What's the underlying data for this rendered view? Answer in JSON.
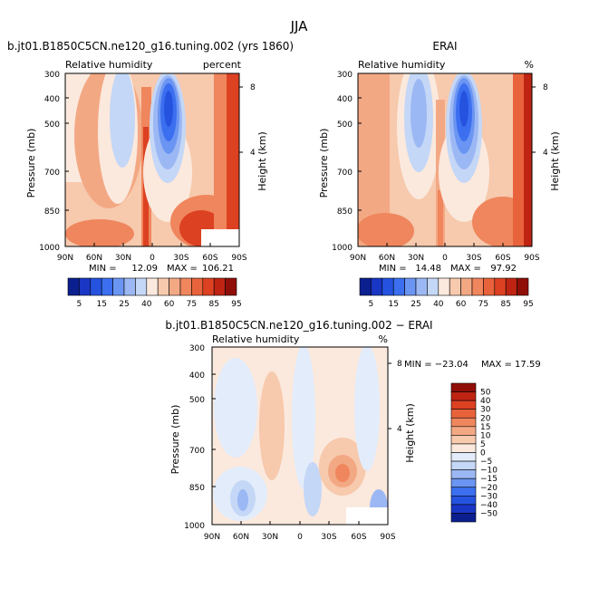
{
  "season_title": "JJA",
  "colors": {
    "rh": [
      "#0b1f8f",
      "#1a36c4",
      "#2553e0",
      "#3b6ff0",
      "#6b95f2",
      "#9cb8f4",
      "#c4d7f6",
      "#fbe9dd",
      "#f7c9ad",
      "#f3a884",
      "#ef865d",
      "#e8633c",
      "#dc4122",
      "#bf2413",
      "#8f0f08"
    ],
    "diff": [
      "#0b1f8f",
      "#1a36c4",
      "#2553e0",
      "#3b6ff0",
      "#6b95f2",
      "#9cb8f4",
      "#c4d7f6",
      "#e3ecfa",
      "#fbe9dd",
      "#f7c9ad",
      "#f3a884",
      "#ef865d",
      "#e8633c",
      "#dc4122",
      "#bf2413",
      "#8f0f08"
    ]
  },
  "chart_data": [
    {
      "type": "heatmap",
      "title": "b.jt01.B1850C5CN.ne120_g16.tuning.002 (yrs 1860)",
      "subtitle_left": "Relative humidity",
      "subtitle_right": "percent",
      "xlabel": "",
      "ylabel": "Pressure (mb)",
      "ylabel_right": "Height (km)",
      "x_ticks": [
        "90N",
        "60N",
        "30N",
        "0",
        "30S",
        "60S",
        "90S"
      ],
      "y_ticks": [
        "300",
        "400",
        "500",
        "700",
        "850",
        "1000"
      ],
      "y_ticks_right": [
        "8",
        "4"
      ],
      "xlim": [
        90,
        -90
      ],
      "ylim": [
        1000,
        300
      ],
      "min_text": "MIN =",
      "min_value": "12.09",
      "max_text": "MAX =",
      "max_value": "106.21",
      "colorbar_levels": [
        "5",
        "15",
        "25",
        "40",
        "60",
        "75",
        "85",
        "95"
      ],
      "contour_levels": [
        5,
        10,
        15,
        20,
        25,
        30,
        40,
        50,
        60,
        65,
        70,
        75,
        80,
        85,
        90,
        95
      ]
    },
    {
      "type": "heatmap",
      "title": "ERAI",
      "subtitle_left": "Relative humidity",
      "subtitle_right": "%",
      "xlabel": "",
      "ylabel": "Pressure (mb)",
      "ylabel_right": "Height (km)",
      "x_ticks": [
        "90N",
        "60N",
        "30N",
        "0",
        "30S",
        "60S",
        "90S"
      ],
      "y_ticks": [
        "300",
        "400",
        "500",
        "700",
        "850",
        "1000"
      ],
      "y_ticks_right": [
        "8",
        "4"
      ],
      "xlim": [
        90,
        -90
      ],
      "ylim": [
        1000,
        300
      ],
      "min_text": "MIN =",
      "min_value": "14.48",
      "max_text": "MAX =",
      "max_value": "97.92",
      "colorbar_levels": [
        "5",
        "15",
        "25",
        "40",
        "60",
        "75",
        "85",
        "95"
      ],
      "contour_levels": [
        5,
        10,
        15,
        20,
        25,
        30,
        40,
        50,
        60,
        65,
        70,
        75,
        80,
        85,
        90,
        95
      ]
    },
    {
      "type": "heatmap",
      "title": "b.jt01.B1850C5CN.ne120_g16.tuning.002 − ERAI",
      "subtitle_left": "Relative humidity",
      "subtitle_right": "%",
      "xlabel": "",
      "ylabel": "Pressure (mb)",
      "ylabel_right": "Height (km)",
      "x_ticks": [
        "90N",
        "60N",
        "30N",
        "0",
        "30S",
        "60S",
        "90S"
      ],
      "y_ticks": [
        "300",
        "400",
        "500",
        "700",
        "850",
        "1000"
      ],
      "y_ticks_right": [
        "8",
        "4"
      ],
      "xlim": [
        90,
        -90
      ],
      "ylim": [
        1000,
        300
      ],
      "min_text": "MIN = −23.04",
      "max_text": "MAX =  17.59",
      "colorbar_levels": [
        "50",
        "40",
        "30",
        "20",
        "15",
        "10",
        "5",
        "0",
        "−5",
        "−10",
        "−15",
        "−20",
        "−30",
        "−40",
        "−50"
      ],
      "contour_levels": [
        -50,
        -40,
        -30,
        -20,
        -15,
        -10,
        -5,
        0,
        5,
        10,
        15,
        20,
        30,
        40,
        50
      ]
    }
  ]
}
